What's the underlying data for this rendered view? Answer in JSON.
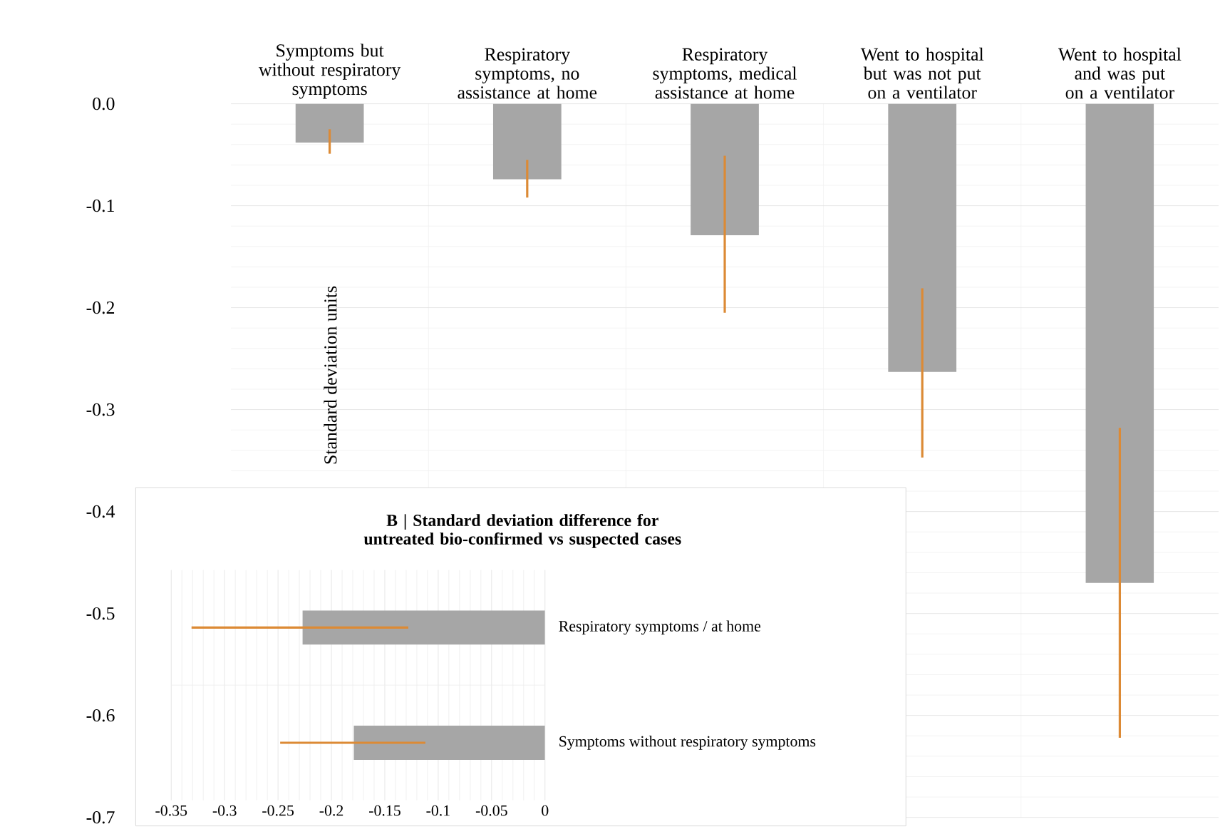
{
  "chart_data": [
    {
      "type": "bar",
      "categories": [
        "Symptoms but without respiratory symptoms",
        "Respiratory symptoms, no assistance at home",
        "Respiratory symptoms, medical assistance at home",
        "Went to hospital but was not put on a ventilator",
        "Went to hospital and was put on a ventilator"
      ],
      "values": [
        -0.038,
        -0.074,
        -0.129,
        -0.263,
        -0.47
      ],
      "errors": [
        [
          -0.049,
          -0.025
        ],
        [
          -0.092,
          -0.055
        ],
        [
          -0.205,
          -0.051
        ],
        [
          -0.347,
          -0.181
        ],
        [
          -0.622,
          -0.318
        ]
      ],
      "color": "#a6a6a6",
      "ylabel": "Standard deviation units",
      "ylim": [
        -0.7,
        0
      ],
      "yticks": [
        {
          "value": 0,
          "label": "0.0"
        },
        -0.1,
        -0.2,
        -0.3,
        -0.4,
        -0.5,
        -0.6,
        -0.7
      ],
      "grid": true
    },
    {
      "type": "bar",
      "orientation": "horizontal",
      "title": "B | Standard deviation difference for untreated bio-confirmed vs suspected cases",
      "categories": [
        "Respiratory symptoms / at home",
        "Symptoms without respiratory symptoms"
      ],
      "values": [
        -0.227,
        -0.179
      ],
      "errors": [
        [
          -0.331,
          -0.128
        ],
        [
          -0.248,
          -0.112
        ]
      ],
      "color": "#a6a6a6",
      "xlim": [
        -0.35,
        0
      ],
      "xticks": [
        -0.35,
        -0.3,
        -0.25,
        -0.2,
        -0.15,
        -0.1,
        -0.05,
        0
      ],
      "grid": true
    }
  ]
}
